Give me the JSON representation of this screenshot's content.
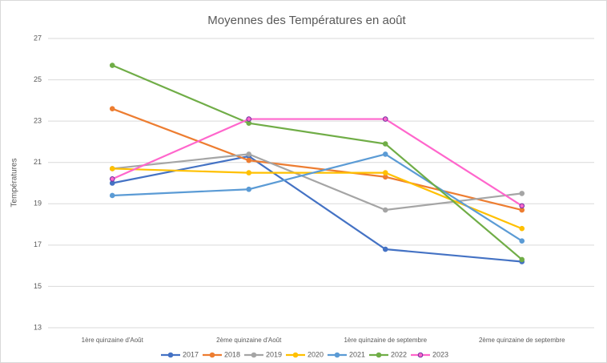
{
  "chart_data": {
    "type": "line",
    "title": "Moyennes des Températures en août",
    "y_label": "Températures",
    "categories": [
      "1ère quinzaine d'Août",
      "2ème quinzaine d'Août",
      "1ère quinzaine de septembre",
      "2ème quinzaine de septembre"
    ],
    "series": [
      {
        "name": "2017",
        "color": "#4472c4",
        "values": [
          20.0,
          21.3,
          16.8,
          16.2
        ]
      },
      {
        "name": "2018",
        "color": "#ed7d31",
        "values": [
          23.6,
          21.1,
          20.3,
          18.7
        ]
      },
      {
        "name": "2019",
        "color": "#a5a5a5",
        "values": [
          20.7,
          21.4,
          18.7,
          19.5
        ]
      },
      {
        "name": "2020",
        "color": "#ffc000",
        "values": [
          20.7,
          20.5,
          20.5,
          17.8
        ]
      },
      {
        "name": "2021",
        "color": "#5b9bd5",
        "values": [
          19.4,
          19.7,
          21.4,
          17.2
        ]
      },
      {
        "name": "2022",
        "color": "#70ad47",
        "values": [
          25.7,
          22.9,
          21.9,
          16.3
        ]
      },
      {
        "name": "2023",
        "color": "#ff66cc",
        "values": [
          20.2,
          23.1,
          23.1,
          18.9
        ]
      }
    ],
    "ylim": [
      13,
      27
    ],
    "yticks": [
      13,
      15,
      17,
      19,
      21,
      23,
      25,
      27
    ],
    "grid": true,
    "legend": "bottom"
  }
}
